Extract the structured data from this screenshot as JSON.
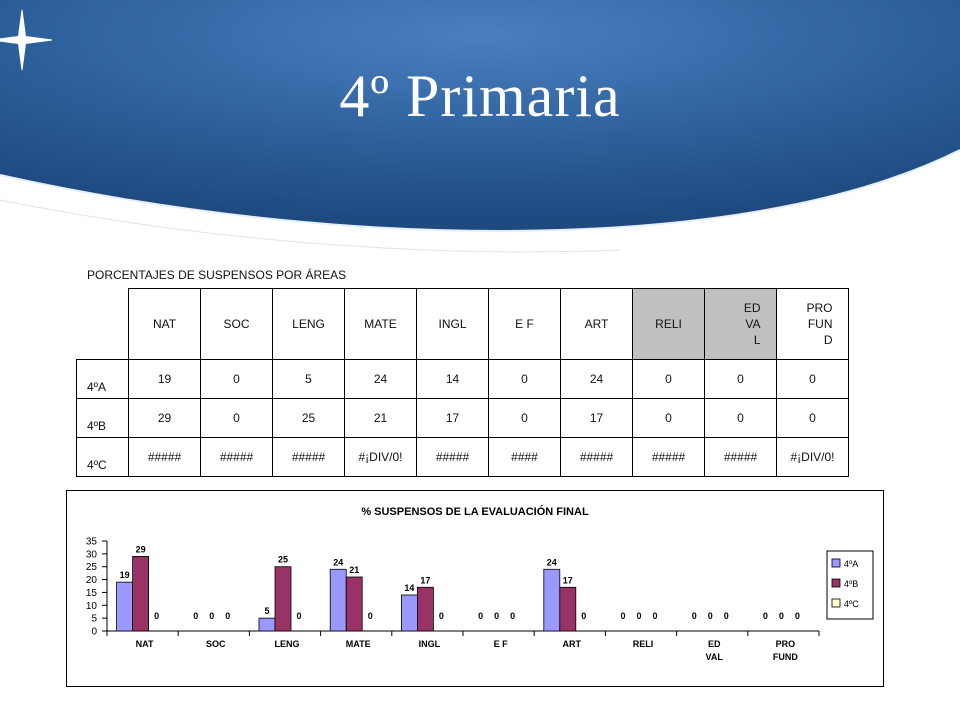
{
  "slide": {
    "title": "4º Primaria",
    "caption": "PORCENTAJES DE SUSPENSOS POR ÁREAS"
  },
  "colors": {
    "background_blue": "#2b5f98",
    "series_4A": "#9999ff",
    "series_4B": "#993366",
    "series_4C": "#ffffcc"
  },
  "table": {
    "headers": [
      "NAT",
      "SOC",
      "LENG",
      "MATE",
      "INGL",
      "E F",
      "ART",
      "RELI",
      "ED\nVA\nL",
      "PRO\nFUN\nD"
    ],
    "rows": [
      {
        "label": "4ºA",
        "cells": [
          "19",
          "0",
          "5",
          "24",
          "14",
          "0",
          "24",
          "0",
          "0",
          "0"
        ]
      },
      {
        "label": "4ºB",
        "cells": [
          "29",
          "0",
          "25",
          "21",
          "17",
          "0",
          "17",
          "0",
          "0",
          "0"
        ]
      },
      {
        "label": "4ºC",
        "cells": [
          "#####",
          "#####",
          "#####",
          "#¡DIV/0!",
          "#####",
          "####",
          "#####",
          "#####",
          "#####",
          "#¡DIV/0!"
        ]
      }
    ]
  },
  "chart_data": {
    "type": "bar",
    "title": "% SUSPENSOS DE LA EVALUACIÓN FINAL",
    "categories": [
      "NAT",
      "SOC",
      "LENG",
      "MATE",
      "INGL",
      "E F",
      "ART",
      "RELI",
      "ED\nVAL",
      "PRO\nFUND"
    ],
    "series": [
      {
        "name": "4ºA",
        "values": [
          19,
          0,
          5,
          24,
          14,
          0,
          24,
          0,
          0,
          0
        ],
        "color": "#9999ff"
      },
      {
        "name": "4ºB",
        "values": [
          29,
          0,
          25,
          21,
          17,
          0,
          17,
          0,
          0,
          0
        ],
        "color": "#993366"
      },
      {
        "name": "4ºC",
        "values": [
          0,
          0,
          0,
          0,
          0,
          0,
          0,
          0,
          0,
          0
        ],
        "color": "#ffffcc"
      }
    ],
    "yticks": [
      "0",
      "5",
      "10",
      "15",
      "20",
      "25",
      "30",
      "35"
    ],
    "ylim": [
      0,
      35
    ],
    "legend": "right",
    "grid": false
  }
}
